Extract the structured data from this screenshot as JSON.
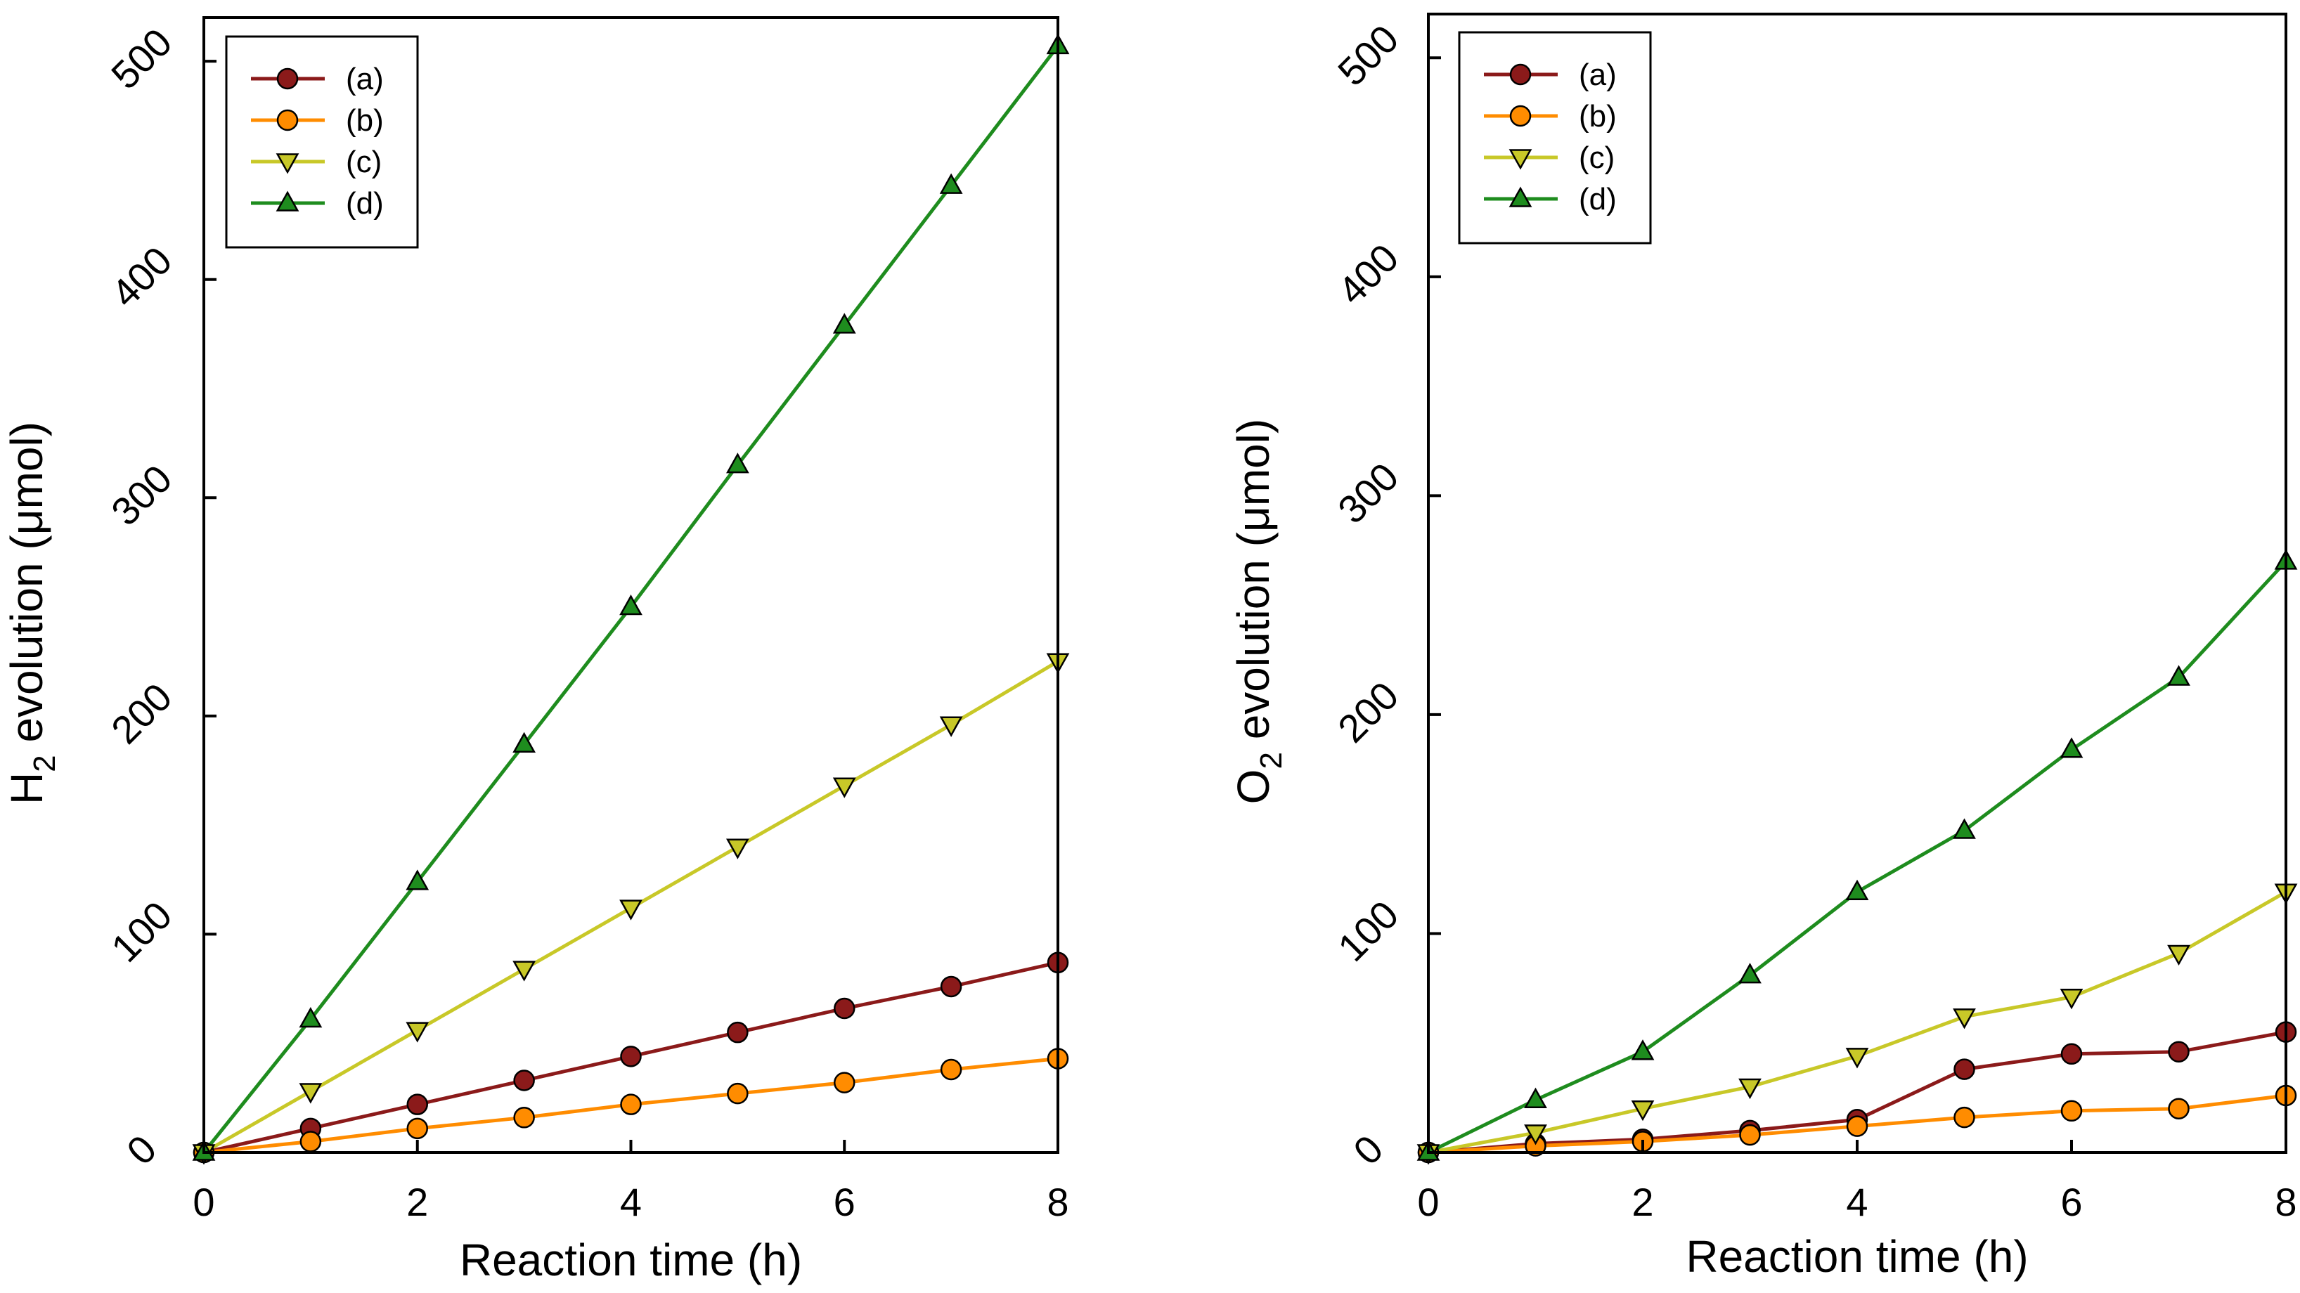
{
  "chart_data": [
    {
      "type": "line",
      "panel": "left",
      "xlabel": "Reaction time (h)",
      "ylabel_main": "H",
      "ylabel_sub": "2",
      "ylabel_rest": " evolution (μmol)",
      "xlim": [
        0,
        8
      ],
      "ylim": [
        0,
        520
      ],
      "xticks": [
        "0",
        "2",
        "4",
        "6",
        "8"
      ],
      "yticks": [
        "0",
        "100",
        "200",
        "300",
        "400",
        "500"
      ],
      "legend_position": "top-left",
      "x": [
        0,
        1,
        2,
        3,
        4,
        5,
        6,
        7,
        8
      ],
      "series": [
        {
          "name": "(a)",
          "color": "#8B1A1A",
          "marker": "circle",
          "values": [
            0,
            11,
            22,
            33,
            44,
            55,
            66,
            76,
            87
          ]
        },
        {
          "name": "(b)",
          "color": "#FF8C00",
          "marker": "circle",
          "values": [
            0,
            5,
            11,
            16,
            22,
            27,
            32,
            38,
            43
          ]
        },
        {
          "name": "(c)",
          "color": "#C8C828",
          "marker": "triangle-down",
          "values": [
            0,
            28,
            56,
            84,
            112,
            140,
            168,
            196,
            225
          ]
        },
        {
          "name": "(d)",
          "color": "#1E8C1E",
          "marker": "triangle-up",
          "values": [
            0,
            61,
            124,
            187,
            250,
            315,
            379,
            443,
            507
          ]
        }
      ]
    },
    {
      "type": "line",
      "panel": "right",
      "xlabel": "Reaction time (h)",
      "ylabel_main": "O",
      "ylabel_sub": "2",
      "ylabel_rest": " evolution (μmol)",
      "xlim": [
        0,
        8
      ],
      "ylim": [
        0,
        520
      ],
      "xticks": [
        "0",
        "2",
        "4",
        "6",
        "8"
      ],
      "yticks": [
        "0",
        "100",
        "200",
        "300",
        "400",
        "500"
      ],
      "legend_position": "top-left",
      "x": [
        0,
        1,
        2,
        3,
        4,
        5,
        6,
        7,
        8
      ],
      "series": [
        {
          "name": "(a)",
          "color": "#8B1A1A",
          "marker": "circle",
          "values": [
            0,
            4,
            6,
            10,
            15,
            38,
            45,
            46,
            55
          ]
        },
        {
          "name": "(b)",
          "color": "#FF8C00",
          "marker": "circle",
          "values": [
            0,
            3,
            5,
            8,
            12,
            16,
            19,
            20,
            26
          ]
        },
        {
          "name": "(c)",
          "color": "#C8C828",
          "marker": "triangle-down",
          "values": [
            0,
            9,
            20,
            30,
            44,
            62,
            71,
            91,
            119
          ]
        },
        {
          "name": "(d)",
          "color": "#1E8C1E",
          "marker": "triangle-up",
          "values": [
            0,
            24,
            46,
            81,
            119,
            147,
            184,
            217,
            270
          ]
        }
      ]
    }
  ]
}
